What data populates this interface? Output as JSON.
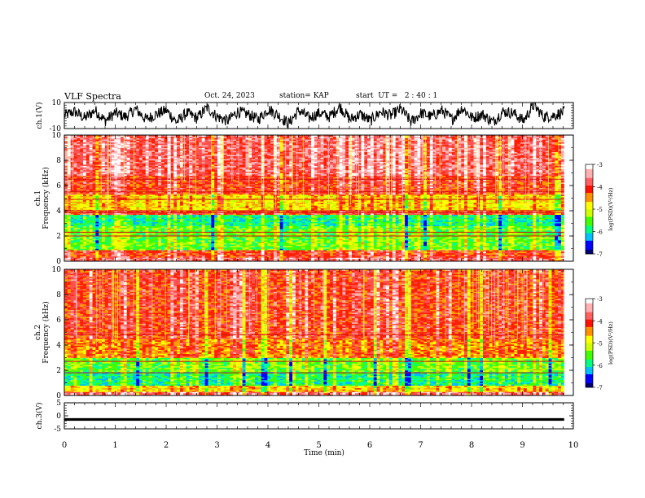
{
  "header": {
    "title": "VLF Spectra",
    "date": "Oct. 24, 2023",
    "station": "station= KAP",
    "start_ut": "start  UT =   2 : 40 : 1"
  },
  "colors": {
    "spectrogram": [
      "#000060",
      "#0000ff",
      "#00b8ff",
      "#00ffa0",
      "#40ff00",
      "#c8ff00",
      "#ffff00",
      "#ffa000",
      "#ff2000",
      "#ff5050",
      "#ffb0b0",
      "#ffffff"
    ]
  },
  "chart_data": [
    {
      "type": "line",
      "panel": "waveform-ch1",
      "ylabel": "ch.1(V)",
      "yticks": [
        "10",
        "-10"
      ],
      "ylim": [
        -10,
        10
      ],
      "xlim": [
        0,
        10
      ],
      "data_end_min": 9.82,
      "series": [
        {
          "values": [
            0,
            3,
            -2,
            4,
            -4,
            2,
            -1,
            5,
            -3,
            1,
            4,
            -5,
            2,
            -2,
            6,
            -1,
            -4,
            3,
            1,
            -3,
            5,
            0,
            -6,
            4,
            -2,
            2,
            -1,
            7,
            -3,
            1,
            -4,
            3,
            0,
            5,
            -5,
            2,
            -1,
            4,
            -3,
            6,
            -2,
            1,
            -5,
            3,
            2,
            -4,
            8,
            -1,
            0,
            3
          ]
        }
      ]
    },
    {
      "type": "heatmap",
      "panel": "spectrogram-ch1",
      "ylabel": "ch.1\nFrequency  (kHz)",
      "yticks": [
        "0",
        "2",
        "4",
        "6",
        "8",
        "10"
      ],
      "ylim": [
        0,
        10
      ],
      "xlim": [
        0,
        10
      ],
      "data_end_min": 9.82,
      "bands_kHz_to_level": [
        {
          "from": 0.0,
          "to": 0.3,
          "level": 9
        },
        {
          "from": 0.3,
          "to": 0.9,
          "level": 8
        },
        {
          "from": 0.9,
          "to": 2.8,
          "level": 4
        },
        {
          "from": 2.8,
          "to": 3.7,
          "level": 3
        },
        {
          "from": 3.7,
          "to": 4.0,
          "level": 8
        },
        {
          "from": 4.0,
          "to": 5.3,
          "level": 6
        },
        {
          "from": 5.3,
          "to": 6.8,
          "level": 8
        },
        {
          "from": 6.8,
          "to": 10.0,
          "level": 9
        }
      ],
      "lines_kHz": [
        2.0,
        2.3,
        3.85,
        4.0,
        4.9,
        5.5,
        6.5
      ],
      "colorbar": {
        "label": "log(PSD)(V²/Hz)",
        "ticks": [
          "-3",
          "-4",
          "-5",
          "-6",
          "-7"
        ],
        "range": [
          -7,
          -3
        ]
      }
    },
    {
      "type": "heatmap",
      "panel": "spectrogram-ch2",
      "ylabel": "ch.2\nFrequency  (kHz)",
      "yticks": [
        "0",
        "2",
        "4",
        "6",
        "8",
        "10"
      ],
      "ylim": [
        0,
        10
      ],
      "xlim": [
        0,
        10
      ],
      "data_end_min": 9.82,
      "bands_kHz_to_level": [
        {
          "from": 0.0,
          "to": 0.3,
          "level": 9
        },
        {
          "from": 0.3,
          "to": 0.8,
          "level": 6
        },
        {
          "from": 0.8,
          "to": 1.9,
          "level": 3
        },
        {
          "from": 1.9,
          "to": 3.0,
          "level": 4
        },
        {
          "from": 3.0,
          "to": 4.5,
          "level": 7
        },
        {
          "from": 4.5,
          "to": 10.0,
          "level": 8
        }
      ],
      "lines_kHz": [
        1.8,
        2.7,
        4.8
      ],
      "colorbar": {
        "label": "log(PSD)(V²/Hz)",
        "ticks": [
          "-3",
          "-4",
          "-5",
          "-6",
          "-7"
        ],
        "range": [
          -7,
          -3
        ]
      }
    },
    {
      "type": "line",
      "panel": "waveform-ch3",
      "ylabel": "ch.3(V)",
      "yticks": [
        "5",
        "0",
        "-5"
      ],
      "ylim": [
        -5,
        5
      ],
      "xlim": [
        0,
        10
      ],
      "data_end_min": 9.82,
      "series": [
        {
          "level_V": -1.4,
          "band_V": [
            -1.9,
            -0.9
          ]
        }
      ]
    }
  ],
  "xaxis": {
    "label": "Time  (min)",
    "ticks": [
      "0",
      "1",
      "2",
      "3",
      "4",
      "5",
      "6",
      "7",
      "8",
      "9",
      "10"
    ]
  }
}
